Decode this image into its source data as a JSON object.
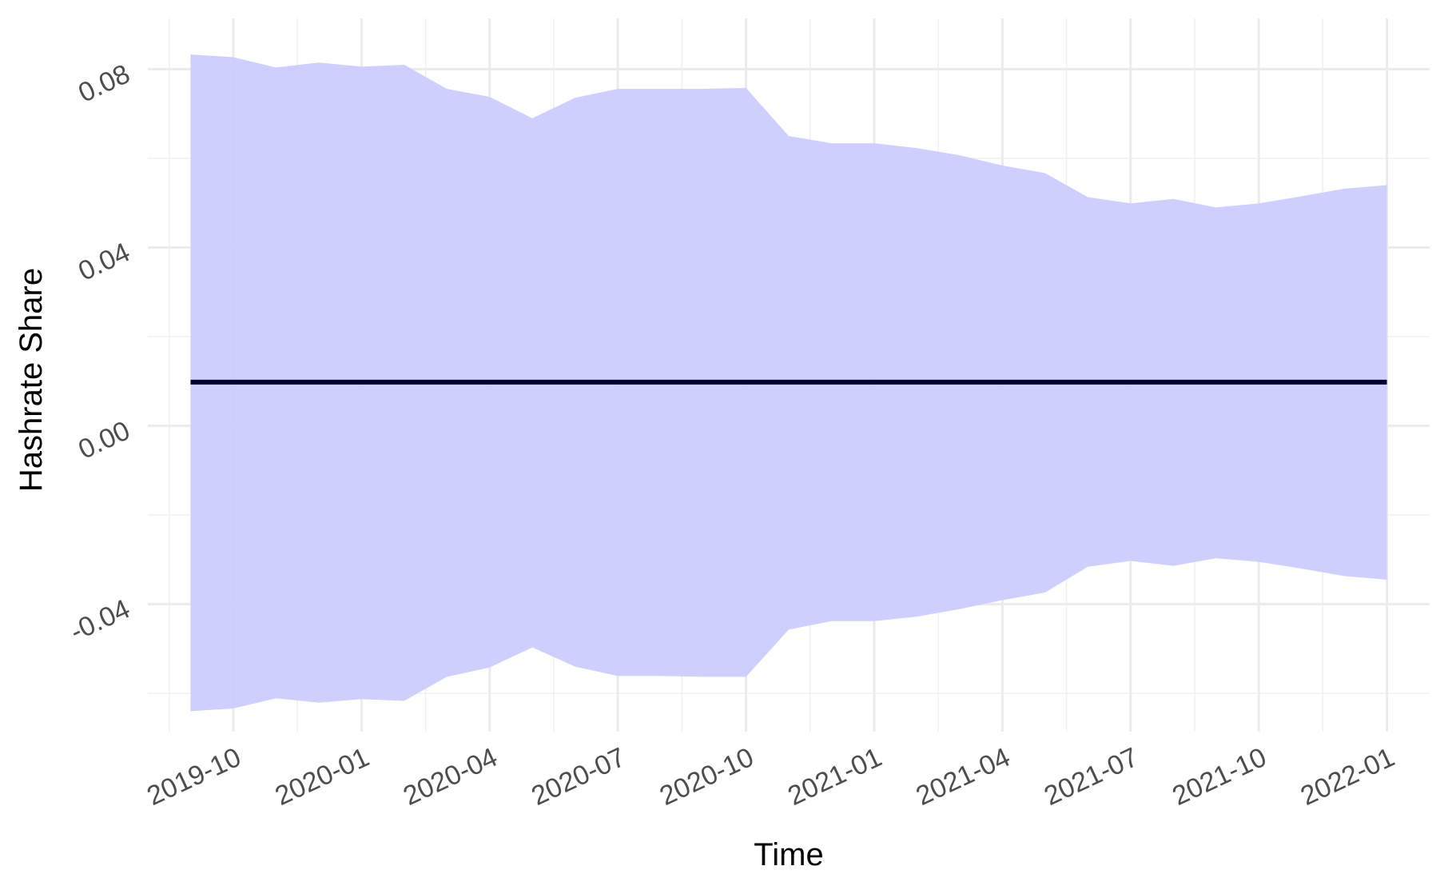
{
  "chart_data": {
    "type": "line",
    "x_label": "Time",
    "y_label": "Hashrate Share",
    "x": [
      "2019-09",
      "2019-10",
      "2019-11",
      "2019-12",
      "2020-01",
      "2020-02",
      "2020-03",
      "2020-04",
      "2020-05",
      "2020-06",
      "2020-07",
      "2020-08",
      "2020-09",
      "2020-10",
      "2020-11",
      "2020-12",
      "2021-01",
      "2021-02",
      "2021-03",
      "2021-04",
      "2021-05",
      "2021-06",
      "2021-07",
      "2021-08",
      "2021-09",
      "2021-10",
      "2021-11",
      "2021-12",
      "2022-01"
    ],
    "band": {
      "color": "#ccccff",
      "upper": [
        0.0833,
        0.0827,
        0.0804,
        0.0815,
        0.0806,
        0.081,
        0.0756,
        0.0738,
        0.069,
        0.0736,
        0.0756,
        0.0756,
        0.0756,
        0.0758,
        0.065,
        0.0634,
        0.0634,
        0.0623,
        0.0607,
        0.0584,
        0.0567,
        0.0513,
        0.0499,
        0.0509,
        0.049,
        0.0499,
        0.0515,
        0.0532,
        0.054
      ],
      "lower": [
        -0.064,
        -0.0634,
        -0.0611,
        -0.0621,
        -0.0613,
        -0.0617,
        -0.0563,
        -0.0542,
        -0.0497,
        -0.054,
        -0.0561,
        -0.0561,
        -0.0563,
        -0.0563,
        -0.0457,
        -0.0438,
        -0.0438,
        -0.0428,
        -0.0411,
        -0.0391,
        -0.0374,
        -0.0316,
        -0.0303,
        -0.0314,
        -0.0297,
        -0.0305,
        -0.032,
        -0.0337,
        -0.0345
      ]
    },
    "series": [
      {
        "color": "#000033",
        "values": [
          0.0098,
          0.0098,
          0.0098,
          0.0098,
          0.0098,
          0.0098,
          0.0098,
          0.0098,
          0.0098,
          0.0098,
          0.0098,
          0.0098,
          0.0098,
          0.0098,
          0.0098,
          0.0098,
          0.0098,
          0.0098,
          0.0098,
          0.0098,
          0.0098,
          0.0098,
          0.0098,
          0.0098,
          0.0098,
          0.0098,
          0.0098,
          0.0098,
          0.0098
        ]
      }
    ],
    "xlim": [
      "2019-08",
      "2022-02"
    ],
    "xticks": [
      "2019-10",
      "2020-01",
      "2020-04",
      "2020-07",
      "2020-10",
      "2021-01",
      "2021-04",
      "2021-07",
      "2021-10",
      "2022-01"
    ],
    "ylim": [
      -0.0686,
      0.0914
    ],
    "yticks": [
      -0.04,
      {
        "value": 0,
        "label": "0.00"
      },
      0.04,
      0.08
    ],
    "grid": true
  }
}
